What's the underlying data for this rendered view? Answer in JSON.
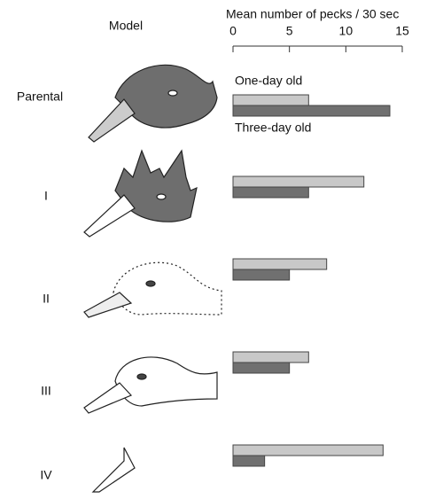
{
  "chart_data": {
    "type": "bar",
    "orientation": "horizontal",
    "annotations": [
      "Model"
    ],
    "x_label": "Mean number of pecks / 30 sec",
    "categories": [
      "Parental",
      "I",
      "II",
      "III",
      "IV"
    ],
    "series": [
      {
        "name": "One-day old",
        "color": "#c8c8c8",
        "values": [
          6.7,
          11.6,
          8.3,
          6.7,
          13.3
        ]
      },
      {
        "name": "Three-day old",
        "color": "#707070",
        "values": [
          13.9,
          6.7,
          5,
          5,
          2.8
        ]
      }
    ],
    "xlim": [
      0,
      15
    ],
    "xticks": [
      0,
      5,
      10,
      15
    ]
  }
}
